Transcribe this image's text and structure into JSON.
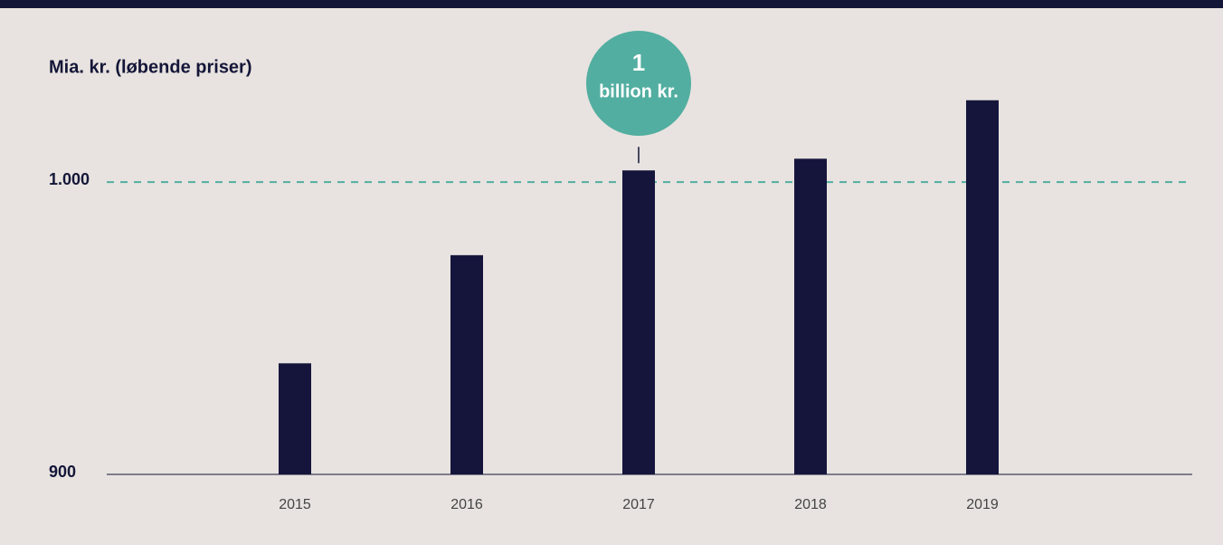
{
  "chart_data": {
    "type": "bar",
    "y_label": "Mia. kr. (løbende priser)",
    "categories": [
      "2015",
      "2016",
      "2017",
      "2018",
      "2019"
    ],
    "values": [
      938,
      975,
      1004,
      1008,
      1028
    ],
    "color": "#15153c",
    "ylim": [
      900,
      1040
    ],
    "yticks": [
      900,
      {
        "value": 1000,
        "label": "1.000"
      }
    ],
    "reference_color": "#52aea0",
    "annotation": {
      "category": "2017",
      "lines": [
        "1",
        "billion kr."
      ],
      "color": "#52aea0"
    }
  }
}
